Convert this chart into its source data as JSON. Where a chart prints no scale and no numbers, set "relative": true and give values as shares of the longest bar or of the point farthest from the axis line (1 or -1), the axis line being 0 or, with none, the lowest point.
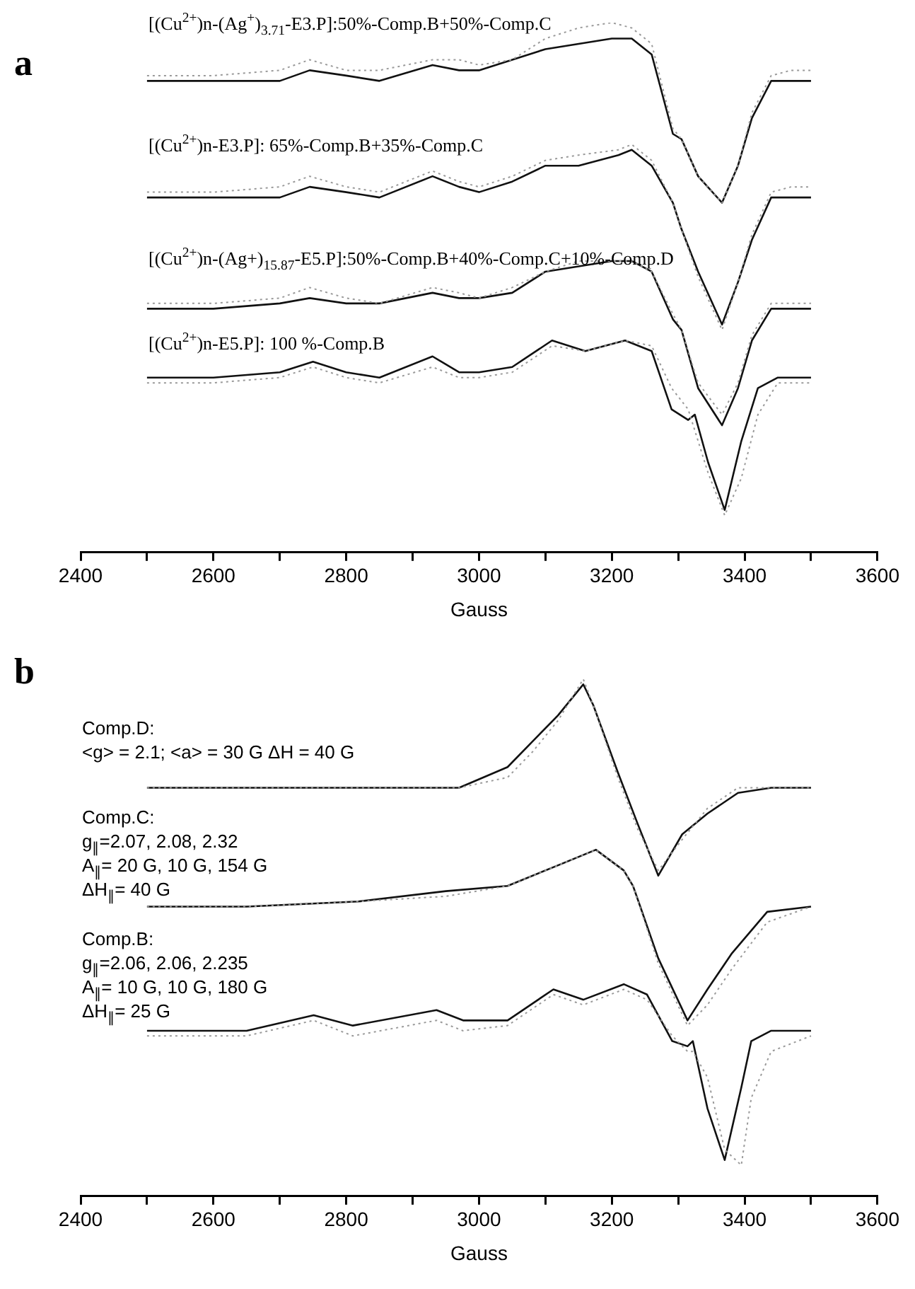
{
  "chart_data": [
    {
      "type": "line",
      "title": "a",
      "xlabel": "Gauss",
      "relative": true,
      "xlim": [
        2400,
        3600
      ],
      "xticks": [
        2400,
        {
          "value": 2500,
          "label": null
        },
        2600,
        {
          "value": 2700,
          "label": null
        },
        2800,
        {
          "value": 2900,
          "label": null
        },
        3000,
        {
          "value": 3100,
          "label": null
        },
        3200,
        {
          "value": 3300,
          "label": null
        },
        3400,
        {
          "value": 3500,
          "label": null
        },
        3600
      ],
      "tick_labels": "x",
      "grid": false,
      "legend": false,
      "marker": "none",
      "series": [
        {
          "color": "#9a9a9a",
          "line_style": "dotted",
          "x": [
            2500,
            2600,
            2700,
            2745,
            2800,
            2850,
            2930,
            2970,
            3000,
            3050,
            3100,
            3150,
            3200,
            3230,
            3260,
            3292,
            3305,
            3330,
            3366,
            3390,
            3411,
            3440,
            3470,
            3500
          ],
          "values": [
            0.9,
            0.9,
            0.91,
            0.93,
            0.91,
            0.91,
            0.93,
            0.93,
            0.92,
            0.93,
            0.97,
            0.99,
            1,
            0.99,
            0.96,
            0.8,
            0.78,
            0.71,
            0.66,
            0.73,
            0.83,
            0.9,
            0.91,
            0.91
          ]
        },
        {
          "color": "#111111",
          "line_style": "solid",
          "x": [
            2500,
            2600,
            2700,
            2745,
            2800,
            2850,
            2930,
            2970,
            3000,
            3050,
            3100,
            3150,
            3200,
            3230,
            3260,
            3292,
            3305,
            3330,
            3366,
            3390,
            3411,
            3440,
            3470,
            3500
          ],
          "values": [
            0.89,
            0.89,
            0.89,
            0.91,
            0.9,
            0.89,
            0.92,
            0.91,
            0.91,
            0.93,
            0.95,
            0.96,
            0.97,
            0.97,
            0.94,
            0.79,
            0.78,
            0.71,
            0.66,
            0.73,
            0.82,
            0.89,
            0.89,
            0.89
          ]
        },
        {
          "color": "#9a9a9a",
          "line_style": "dotted",
          "x": [
            2500,
            2600,
            2700,
            2745,
            2800,
            2850,
            2930,
            2970,
            3000,
            3050,
            3100,
            3150,
            3210,
            3230,
            3260,
            3292,
            3305,
            3330,
            3366,
            3390,
            3411,
            3440,
            3470,
            3500
          ],
          "values": [
            0.68,
            0.68,
            0.69,
            0.71,
            0.69,
            0.68,
            0.72,
            0.7,
            0.69,
            0.71,
            0.74,
            0.75,
            0.76,
            0.77,
            0.74,
            0.66,
            0.61,
            0.52,
            0.42,
            0.51,
            0.6,
            0.68,
            0.69,
            0.69
          ]
        },
        {
          "color": "#111111",
          "line_style": "solid",
          "x": [
            2500,
            2600,
            2700,
            2745,
            2800,
            2850,
            2930,
            2970,
            3000,
            3050,
            3100,
            3150,
            3210,
            3230,
            3260,
            3292,
            3305,
            3330,
            3366,
            3390,
            3411,
            3440,
            3470,
            3500
          ],
          "values": [
            0.67,
            0.67,
            0.67,
            0.69,
            0.68,
            0.67,
            0.71,
            0.69,
            0.68,
            0.7,
            0.73,
            0.73,
            0.75,
            0.76,
            0.73,
            0.66,
            0.61,
            0.53,
            0.43,
            0.51,
            0.59,
            0.67,
            0.67,
            0.67
          ]
        },
        {
          "color": "#9a9a9a",
          "line_style": "dotted",
          "x": [
            2500,
            2600,
            2700,
            2745,
            2800,
            2850,
            2930,
            2970,
            3000,
            3050,
            3100,
            3150,
            3200,
            3230,
            3260,
            3292,
            3305,
            3330,
            3366,
            3390,
            3411,
            3440,
            3470,
            3500
          ],
          "values": [
            0.47,
            0.47,
            0.48,
            0.5,
            0.48,
            0.47,
            0.5,
            0.49,
            0.48,
            0.5,
            0.53,
            0.55,
            0.55,
            0.55,
            0.53,
            0.45,
            0.42,
            0.32,
            0.26,
            0.32,
            0.41,
            0.47,
            0.47,
            0.47
          ]
        },
        {
          "color": "#111111",
          "line_style": "solid",
          "x": [
            2500,
            2600,
            2700,
            2745,
            2800,
            2850,
            2930,
            2970,
            3000,
            3050,
            3100,
            3150,
            3200,
            3230,
            3260,
            3292,
            3305,
            3330,
            3366,
            3390,
            3411,
            3440,
            3470,
            3500
          ],
          "values": [
            0.46,
            0.46,
            0.47,
            0.48,
            0.47,
            0.47,
            0.49,
            0.48,
            0.48,
            0.49,
            0.53,
            0.54,
            0.55,
            0.55,
            0.53,
            0.44,
            0.42,
            0.31,
            0.24,
            0.31,
            0.4,
            0.46,
            0.46,
            0.46
          ]
        },
        {
          "color": "#9a9a9a",
          "line_style": "dotted",
          "x": [
            2500,
            2600,
            2700,
            2750,
            2800,
            2850,
            2930,
            2970,
            3000,
            3050,
            3110,
            3160,
            3220,
            3260,
            3290,
            3315,
            3325,
            3345,
            3370,
            3395,
            3420,
            3450,
            3500
          ],
          "values": [
            0.32,
            0.32,
            0.33,
            0.35,
            0.33,
            0.32,
            0.35,
            0.33,
            0.33,
            0.34,
            0.39,
            0.38,
            0.4,
            0.39,
            0.31,
            0.27,
            0.23,
            0.15,
            0.07,
            0.14,
            0.26,
            0.32,
            0.32
          ]
        },
        {
          "color": "#111111",
          "line_style": "solid",
          "x": [
            2500,
            2600,
            2700,
            2750,
            2800,
            2850,
            2930,
            2970,
            3000,
            3050,
            3110,
            3160,
            3220,
            3260,
            3290,
            3315,
            3325,
            3345,
            3370,
            3395,
            3420,
            3450,
            3500
          ],
          "values": [
            0.33,
            0.33,
            0.34,
            0.36,
            0.34,
            0.33,
            0.37,
            0.34,
            0.34,
            0.35,
            0.4,
            0.38,
            0.4,
            0.38,
            0.27,
            0.25,
            0.26,
            0.17,
            0.08,
            0.21,
            0.31,
            0.33,
            0.33
          ]
        }
      ],
      "annotations": [
        "[(Cu$^{2+}$)n-(Ag$^{+}$)$_{3.71}$-E3.P]:50%-Comp.B+50%-Comp.C",
        "[(Cu$^{2+}$)n-E3.P]: 65%-Comp.B+35%-Comp.C",
        "[(Cu$^{2+}$)n-(Ag+)$_{15.87}$-E5.P]:50%-Comp.B+40%-Comp.C+10%-Comp.D",
        "[(Cu$^{2+}$)n-E5.P]: 100 %-Comp.B"
      ]
    },
    {
      "type": "line",
      "title": "b",
      "xlabel": "Gauss",
      "relative": true,
      "xlim": [
        2400,
        3600
      ],
      "xticks": [
        2400,
        {
          "value": 2500,
          "label": null
        },
        2600,
        {
          "value": 2700,
          "label": null
        },
        2800,
        {
          "value": 2900,
          "label": null
        },
        3000,
        {
          "value": 3100,
          "label": null
        },
        3200,
        {
          "value": 3300,
          "label": null
        },
        3400,
        {
          "value": 3500,
          "label": null
        },
        3600
      ],
      "tick_labels": "x",
      "grid": false,
      "legend": false,
      "marker": "none",
      "series": [
        {
          "color": "#9a9a9a",
          "line_style": "dotted",
          "x": [
            2500,
            2700,
            2900,
            2970,
            3043,
            3081,
            3119,
            3157,
            3172,
            3209,
            3239,
            3270,
            3306,
            3344,
            3390,
            3440,
            3500
          ],
          "values": [
            0.79,
            0.79,
            0.79,
            0.79,
            0.81,
            0.86,
            0.92,
            1,
            0.95,
            0.81,
            0.71,
            0.63,
            0.69,
            0.75,
            0.79,
            0.79,
            0.79
          ]
        },
        {
          "color": "#111111",
          "line_style": "solid",
          "x": [
            2500,
            2700,
            2900,
            2970,
            3043,
            3081,
            3119,
            3157,
            3172,
            3209,
            3239,
            3270,
            3306,
            3344,
            3390,
            3440,
            3500
          ],
          "values": [
            0.79,
            0.79,
            0.79,
            0.79,
            0.83,
            0.88,
            0.93,
            0.99,
            0.95,
            0.82,
            0.72,
            0.62,
            0.7,
            0.74,
            0.78,
            0.79,
            0.79
          ]
        },
        {
          "color": "#9a9a9a",
          "line_style": "dotted",
          "x": [
            2500,
            2650,
            2818,
            2950,
            3043,
            3119,
            3176,
            3218,
            3232,
            3270,
            3314,
            3344,
            3381,
            3434,
            3500
          ],
          "values": [
            0.56,
            0.56,
            0.57,
            0.58,
            0.6,
            0.64,
            0.67,
            0.63,
            0.6,
            0.45,
            0.33,
            0.37,
            0.44,
            0.53,
            0.56
          ]
        },
        {
          "color": "#111111",
          "line_style": "solid",
          "x": [
            2500,
            2650,
            2818,
            2950,
            3043,
            3119,
            3176,
            3218,
            3232,
            3270,
            3314,
            3344,
            3381,
            3434,
            3500
          ],
          "values": [
            0.56,
            0.56,
            0.57,
            0.59,
            0.6,
            0.64,
            0.67,
            0.63,
            0.6,
            0.46,
            0.34,
            0.4,
            0.47,
            0.55,
            0.56
          ]
        },
        {
          "color": "#9a9a9a",
          "line_style": "dotted",
          "x": [
            2500,
            2650,
            2751,
            2810,
            2936,
            2976,
            3043,
            3112,
            3157,
            3218,
            3253,
            3291,
            3314,
            3322,
            3344,
            3370,
            3395,
            3410,
            3440,
            3500
          ],
          "values": [
            0.31,
            0.31,
            0.34,
            0.31,
            0.34,
            0.32,
            0.33,
            0.39,
            0.37,
            0.4,
            0.38,
            0.31,
            0.28,
            0.28,
            0.23,
            0.09,
            0.06,
            0.19,
            0.28,
            0.31
          ]
        },
        {
          "color": "#111111",
          "line_style": "solid",
          "x": [
            2500,
            2650,
            2751,
            2810,
            2936,
            2976,
            3043,
            3112,
            3157,
            3218,
            3253,
            3291,
            3314,
            3322,
            3344,
            3370,
            3395,
            3410,
            3440,
            3500
          ],
          "values": [
            0.32,
            0.32,
            0.35,
            0.33,
            0.36,
            0.34,
            0.34,
            0.4,
            0.38,
            0.41,
            0.39,
            0.3,
            0.29,
            0.3,
            0.17,
            0.07,
            0.21,
            0.3,
            0.32,
            0.32
          ]
        }
      ],
      "annotations": [
        "Comp.D:\n<g> = 2.1; <a> = 30 G ΔH = 40 G",
        "Comp.C:\ng$_{∥}$=2.07, 2.08, 2.32\nA$_{∥}$= 20 G, 10 G, 154 G\nΔH$_{∥}$= 40 G",
        "Comp.B:\ng$_{∥}$=2.06, 2.06, 2.235\nA$_{∥}$= 10 G, 10 G, 180 G\nΔH$_{∥}$= 25 G"
      ]
    }
  ]
}
